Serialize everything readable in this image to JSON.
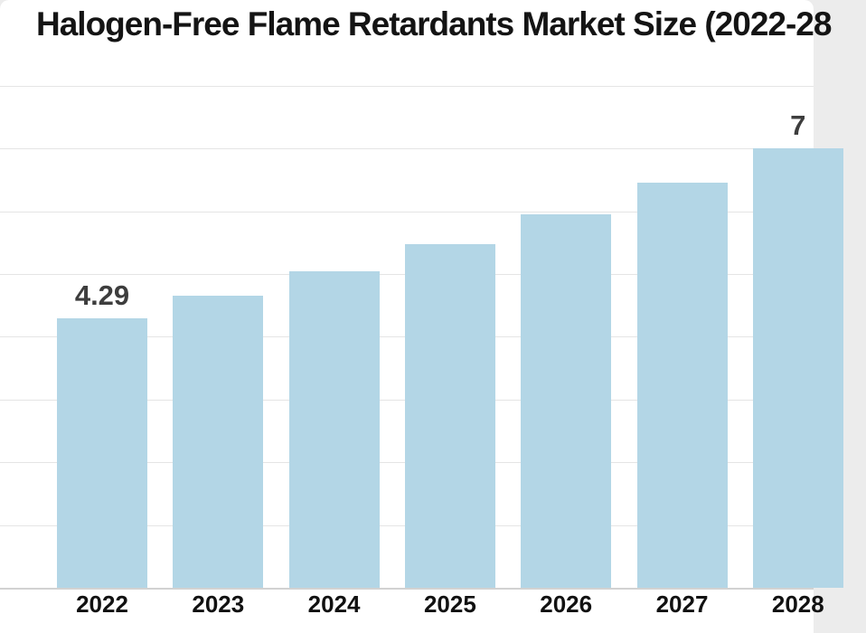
{
  "page": {
    "background_color": "#ececec",
    "card_background": "#ffffff"
  },
  "chart_data": {
    "type": "bar",
    "title": "Halogen-Free Flame Retardants Market Size (2022-28",
    "categories": [
      "2022",
      "2023",
      "2024",
      "2025",
      "2026",
      "2027",
      "2028"
    ],
    "values": [
      4.29,
      4.65,
      5.05,
      5.48,
      5.95,
      6.45,
      7.0
    ],
    "bar_labels": [
      "4.29",
      "",
      "",
      "",
      "",
      "",
      "7"
    ],
    "xlabel": "",
    "ylabel": "",
    "ylim": [
      0,
      8
    ],
    "gridline_values": [
      1,
      2,
      3,
      4,
      5,
      6,
      7,
      8
    ],
    "grid": "horizontal",
    "legend": false,
    "y_tick_labels_visible": false
  },
  "colors": {
    "bar": "#b3d6e6",
    "gridline": "#e5e5e5",
    "baseline": "#d2d2d2",
    "title": "#141414",
    "value_label": "#3d3d3d",
    "tick_label": "#111111"
  }
}
